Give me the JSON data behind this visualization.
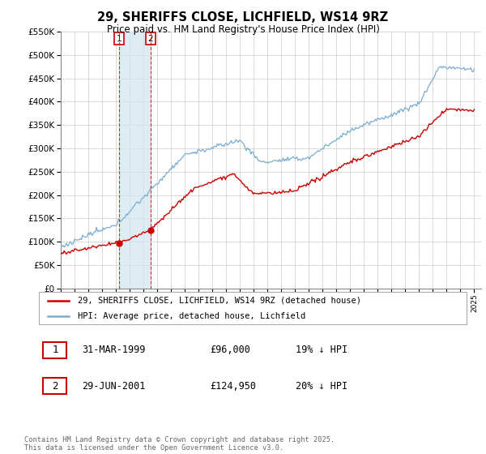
{
  "title1": "29, SHERIFFS CLOSE, LICHFIELD, WS14 9RZ",
  "title2": "Price paid vs. HM Land Registry's House Price Index (HPI)",
  "legend_label_red": "29, SHERIFFS CLOSE, LICHFIELD, WS14 9RZ (detached house)",
  "legend_label_blue": "HPI: Average price, detached house, Lichfield",
  "point1_date": "31-MAR-1999",
  "point1_price": "£96,000",
  "point1_hpi": "19% ↓ HPI",
  "point2_date": "29-JUN-2001",
  "point2_price": "£124,950",
  "point2_hpi": "20% ↓ HPI",
  "footer": "Contains HM Land Registry data © Crown copyright and database right 2025.\nThis data is licensed under the Open Government Licence v3.0.",
  "ylim": [
    0,
    550000
  ],
  "yticks": [
    0,
    50000,
    100000,
    150000,
    200000,
    250000,
    300000,
    350000,
    400000,
    450000,
    500000,
    550000
  ],
  "red_color": "#cc0000",
  "blue_color": "#7aadcf",
  "shade_color": "#d0e4f0",
  "point1_x": 1999.25,
  "point1_y": 96000,
  "point2_x": 2001.5,
  "point2_y": 124950,
  "vline1_x": 1999.25,
  "vline2_x": 2001.5,
  "xmin": 1995,
  "xmax": 2025.5
}
